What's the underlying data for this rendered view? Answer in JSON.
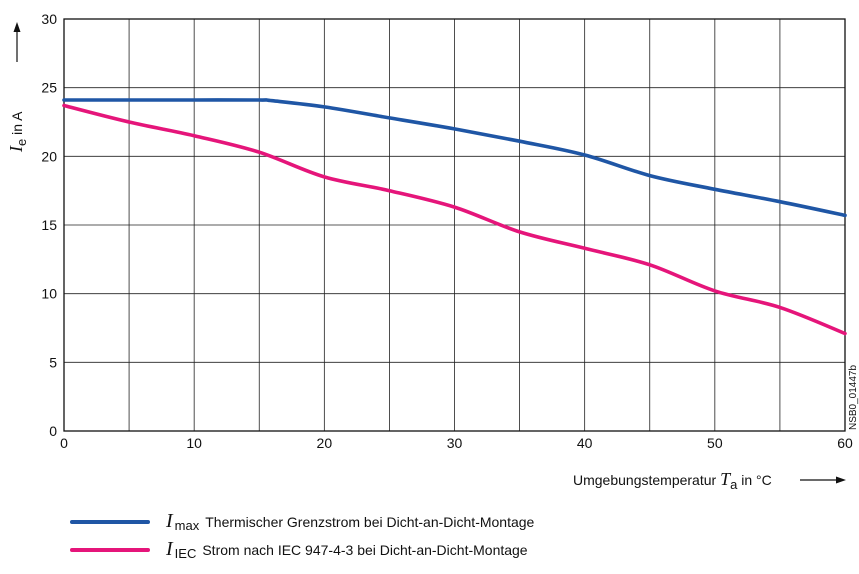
{
  "chart_data": {
    "type": "line",
    "xlabel": "Umgebungstemperatur",
    "xlabel_symbol": "T",
    "xlabel_sub": "a",
    "xlabel_unit": "in °C",
    "ylabel_symbol": "I",
    "ylabel_sub": "e",
    "ylabel_unit": "in A",
    "xlim": [
      0,
      60
    ],
    "ylim": [
      0,
      30
    ],
    "xticks": [
      0,
      10,
      20,
      30,
      40,
      50,
      60
    ],
    "yticks": [
      0,
      5,
      10,
      15,
      20,
      25,
      30
    ],
    "grid": true,
    "legend_position": "bottom",
    "annotation": "NSB0_01447b",
    "series": [
      {
        "name": "Thermischer Grenzstrom bei Dicht-an-Dicht-Montage",
        "symbol": "I",
        "sub": "max",
        "color": "#1f56a5",
        "x": [
          0,
          5,
          10,
          15,
          16,
          20,
          25,
          30,
          35,
          40,
          45,
          50,
          55,
          60
        ],
        "y": [
          24.1,
          24.1,
          24.1,
          24.1,
          24.05,
          23.6,
          22.8,
          22.0,
          21.1,
          20.1,
          18.6,
          17.6,
          16.7,
          15.7
        ]
      },
      {
        "name": "Strom nach IEC 947-4-3 bei Dicht-an-Dicht-Montage",
        "symbol": "I",
        "sub": "IEC",
        "color": "#e5157a",
        "x": [
          0,
          5,
          10,
          15,
          20,
          25,
          30,
          35,
          40,
          45,
          50,
          55,
          60
        ],
        "y": [
          23.7,
          22.5,
          21.5,
          20.3,
          18.5,
          17.5,
          16.3,
          14.5,
          13.3,
          12.1,
          10.2,
          9.0,
          7.1
        ]
      }
    ]
  }
}
